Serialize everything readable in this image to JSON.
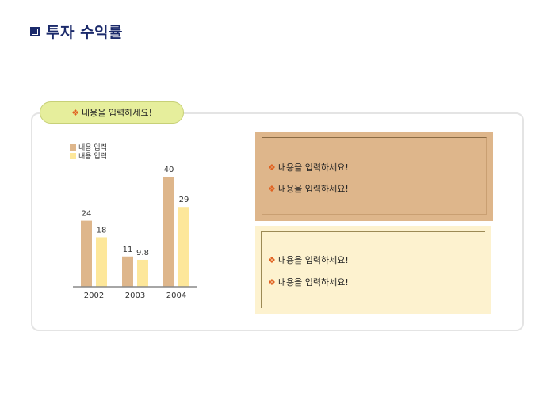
{
  "title": "투자 수익률",
  "panel": {
    "header": "내용을 입력하세요!"
  },
  "box1": {
    "items": [
      "내용을 입력하세요!",
      "내용을 입력하세요!"
    ]
  },
  "box2": {
    "items": [
      "내용을 입력하세요!",
      "내용을 입력하세요!"
    ]
  },
  "colors": {
    "series1": "#deb68b",
    "series2": "#fde79a",
    "title": "#1b2a6b",
    "bullet": "#e0601f"
  },
  "chart_data": {
    "type": "bar",
    "categories": [
      "2002",
      "2003",
      "2004"
    ],
    "series": [
      {
        "name": "내용 입력",
        "values": [
          24,
          11,
          40
        ]
      },
      {
        "name": "내용 입력",
        "values": [
          18,
          9.8,
          29
        ]
      }
    ],
    "data_labels": [
      [
        "24",
        "11",
        "40"
      ],
      [
        "18",
        "9.8",
        "29"
      ]
    ],
    "ylim": [
      0,
      40
    ],
    "grid": false,
    "legend": "top-left"
  }
}
